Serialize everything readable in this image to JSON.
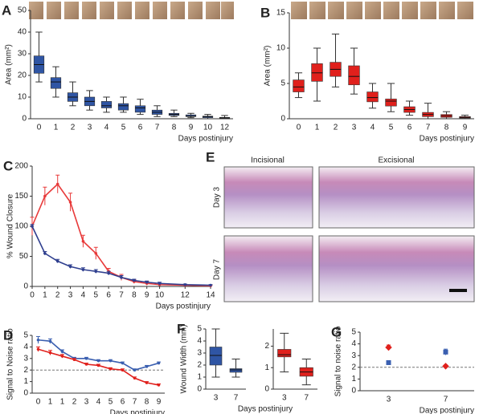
{
  "chart_data": [
    {
      "type": "box",
      "panel": "A",
      "ylabel": "Area (mm²)",
      "xlabel": "Days postinjury",
      "color": "#2f55a4",
      "categories": [
        "0",
        "1",
        "2",
        "3",
        "4",
        "5",
        "6",
        "7",
        "8",
        "9",
        "10",
        "12"
      ],
      "min": [
        17,
        10,
        6,
        4,
        3,
        3,
        2,
        1,
        1,
        0.5,
        0,
        0
      ],
      "q1": [
        21,
        14,
        8,
        6,
        5,
        4,
        3,
        2,
        1.5,
        1,
        0.5,
        0.2
      ],
      "median": [
        25,
        17,
        10,
        8,
        6,
        6,
        5,
        3,
        2,
        1.2,
        1,
        0.4
      ],
      "q3": [
        29,
        19,
        12,
        10,
        8,
        7,
        6,
        4,
        2.5,
        1.8,
        1.2,
        0.6
      ],
      "max": [
        40,
        24,
        17,
        13,
        10,
        10,
        9,
        6,
        4,
        2.5,
        2,
        1.5
      ],
      "ylim": [
        0,
        50
      ],
      "yticks": [
        0,
        10,
        20,
        30,
        40,
        50
      ]
    },
    {
      "type": "box",
      "panel": "B",
      "ylabel": "Area (mm²)",
      "xlabel": "Days postinjury",
      "color": "#e0201c",
      "categories": [
        "0",
        "1",
        "2",
        "3",
        "4",
        "5",
        "6",
        "7",
        "8",
        "9"
      ],
      "min": [
        3,
        2.5,
        4.5,
        3.5,
        1.5,
        1,
        0.5,
        0,
        0,
        0
      ],
      "q1": [
        3.8,
        5.3,
        6,
        4.8,
        2.4,
        1.8,
        0.9,
        0.3,
        0.2,
        0.1
      ],
      "median": [
        4.5,
        6.5,
        7,
        6,
        3,
        2.5,
        1.3,
        0.6,
        0.4,
        0.2
      ],
      "q3": [
        5.5,
        7.8,
        8,
        7.5,
        3.8,
        2.8,
        1.7,
        0.9,
        0.6,
        0.3
      ],
      "max": [
        6.5,
        10,
        12,
        10,
        5,
        5,
        2.5,
        2.2,
        1,
        0.5
      ],
      "ylim": [
        0,
        15
      ],
      "yticks": [
        0,
        5,
        10,
        15
      ]
    },
    {
      "type": "line",
      "panel": "C",
      "ylabel": "% Wound Closure",
      "xlabel": "Days postinjury",
      "x": [
        0,
        1,
        2,
        3,
        4,
        5,
        6,
        7,
        8,
        9,
        10,
        12,
        14
      ],
      "series": [
        {
          "color": "#e83a3a",
          "values": [
            100,
            150,
            170,
            140,
            75,
            55,
            25,
            15,
            8,
            5,
            3,
            2,
            1
          ],
          "errors": [
            15,
            15,
            15,
            15,
            10,
            10,
            5,
            5,
            3,
            3,
            2,
            1,
            1
          ]
        },
        {
          "color": "#2f3f8f",
          "values": [
            100,
            55,
            42,
            33,
            28,
            25,
            22,
            15,
            10,
            7,
            5,
            3,
            2
          ],
          "errors": [
            3,
            3,
            3,
            3,
            3,
            3,
            3,
            3,
            2,
            2,
            2,
            1,
            1
          ]
        }
      ],
      "xlim": [
        0,
        14
      ],
      "xticks": [
        0,
        1,
        2,
        3,
        4,
        5,
        6,
        7,
        8,
        9,
        10,
        12,
        14
      ],
      "ylim": [
        0,
        200
      ],
      "yticks": [
        0,
        50,
        100,
        150,
        200
      ]
    },
    {
      "type": "line",
      "panel": "D",
      "ylabel": "Signal to Noise ratio",
      "xlabel": "Days postinjury",
      "categories": [
        "0",
        "1",
        "1",
        "2",
        "3",
        "4",
        "5",
        "6",
        "7",
        "8",
        "9"
      ],
      "series": [
        {
          "color": "#3a5fb0",
          "values": [
            4.6,
            4.5,
            3.6,
            3.0,
            3.0,
            2.8,
            2.8,
            2.6,
            2.0,
            2.3,
            2.6
          ],
          "errors": [
            0.3,
            0.2,
            0.15,
            0.1,
            0.1,
            0.1,
            0.1,
            0.1,
            0.1,
            0.1,
            0.1
          ]
        },
        {
          "color": "#e0201c",
          "values": [
            3.8,
            3.5,
            3.2,
            2.9,
            2.5,
            2.4,
            2.1,
            2.0,
            1.3,
            0.9,
            0.7
          ],
          "errors": [
            0.2,
            0.2,
            0.15,
            0.1,
            0.1,
            0.1,
            0.1,
            0.1,
            0.1,
            0.1,
            0.1
          ]
        }
      ],
      "reference_line": 2,
      "ylim": [
        0,
        5
      ],
      "yticks": [
        0,
        1,
        2,
        3,
        4,
        5
      ]
    },
    {
      "type": "box",
      "panel": "F",
      "ylabel": "Wound Width (mm)",
      "color": "#2f55a4",
      "categories": [
        "3",
        "7"
      ],
      "min": [
        1,
        1
      ],
      "q1": [
        2,
        1.4
      ],
      "median": [
        2.8,
        1.6
      ],
      "q3": [
        3.5,
        1.7
      ],
      "max": [
        5,
        2.5
      ],
      "ylim": [
        0,
        5
      ],
      "yticks": [
        0,
        1,
        2,
        3,
        4,
        5
      ]
    },
    {
      "type": "box",
      "xlabel": "Days postinjury",
      "color": "#e0201c",
      "categories": [
        "3",
        "7"
      ],
      "min": [
        0.8,
        0.2
      ],
      "q1": [
        1.5,
        0.6
      ],
      "median": [
        1.6,
        0.8
      ],
      "q3": [
        1.85,
        1.0
      ],
      "max": [
        2.6,
        1.4
      ],
      "ylim": [
        0,
        2.8
      ],
      "yticks": [
        0,
        1,
        2
      ]
    },
    {
      "type": "scatter",
      "panel": "G",
      "ylabel": "Signal to noise ratio",
      "xlabel": "Days postinjury",
      "categories": [
        "3",
        "7"
      ],
      "series": [
        {
          "color": "#3a5fb0",
          "values": [
            2.4,
            3.3
          ],
          "errors": [
            0.1,
            0.25
          ]
        },
        {
          "color": "#e0201c",
          "values": [
            3.7,
            2.1
          ],
          "errors": [
            0.2,
            0.1
          ]
        }
      ],
      "reference_line": 2,
      "ylim": [
        0,
        5
      ],
      "yticks": [
        0,
        1,
        2,
        3,
        4,
        5
      ]
    }
  ],
  "histology": {
    "panel": "E",
    "columns": [
      "Incisional",
      "Excisional"
    ],
    "rows": [
      "Day 3",
      "Day 7"
    ]
  }
}
